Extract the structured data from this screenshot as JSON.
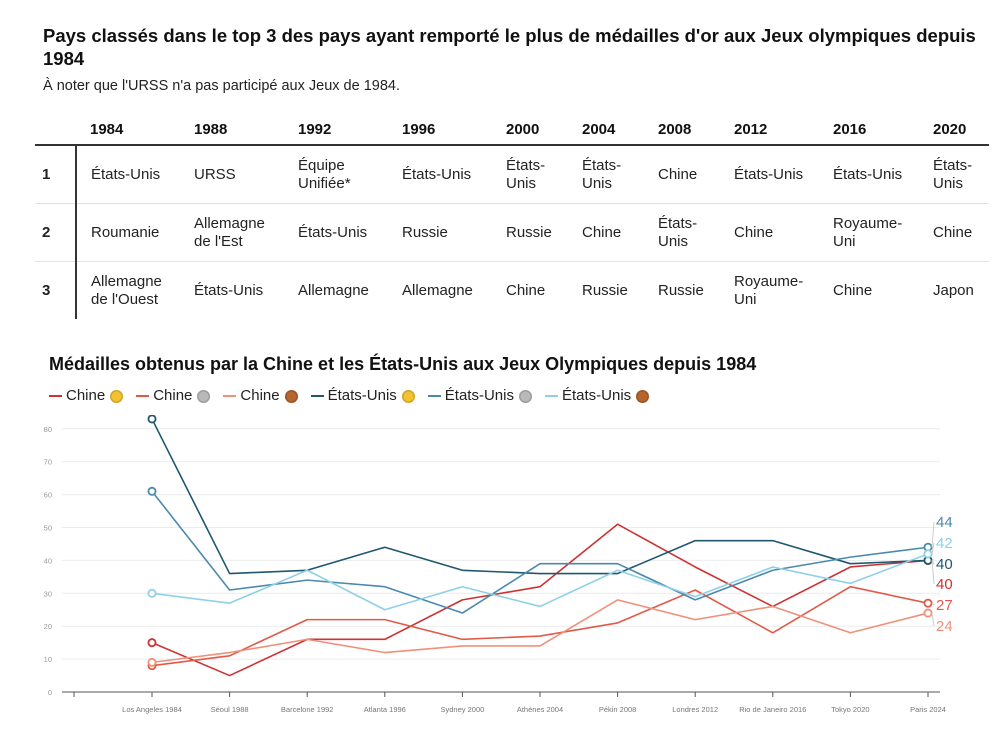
{
  "header": {
    "title": "Pays classés dans le top 3 des pays ayant remporté le plus de médailles d'or aux Jeux olympiques depuis 1984",
    "subtitle": "À noter que l'URSS n'a pas participé aux Jeux de 1984."
  },
  "ranking_table": {
    "columns": [
      "1984",
      "1988",
      "1992",
      "1996",
      "2000",
      "2004",
      "2008",
      "2012",
      "2016",
      "2020"
    ],
    "rows": [
      {
        "rank": "1",
        "cells": [
          "États-Unis",
          "URSS",
          "Équipe Unifiée*",
          "États-Unis",
          "États-Unis",
          "États-Unis",
          "Chine",
          "États-Unis",
          "États-Unis",
          "États-Unis"
        ]
      },
      {
        "rank": "2",
        "cells": [
          "Roumanie",
          "Allemagne de l'Est",
          "États-Unis",
          "Russie",
          "Russie",
          "Chine",
          "États-Unis",
          "Chine",
          "Royaume-Uni",
          "Chine"
        ]
      },
      {
        "rank": "3",
        "cells": [
          "Allemagne de l'Ouest",
          "États-Unis",
          "Allemagne",
          "Allemagne",
          "Chine",
          "Russie",
          "Russie",
          "Royaume-Uni",
          "Chine",
          "Japon"
        ]
      }
    ]
  },
  "colors": {
    "chine_or": "#cc3333",
    "chine_argent": "#e05a4a",
    "chine_bronze": "#f0907a",
    "usa_or": "#1f5670",
    "usa_argent": "#4a8aad",
    "usa_bronze": "#8fd0e8",
    "gold": "#f2c230",
    "silver": "#b9b9b9",
    "bronze": "#b5652d"
  },
  "chart_data": {
    "type": "line",
    "title": "Médailles obtenus par la Chine et les États-Unis aux Jeux Olympiques depuis 1984",
    "categories": [
      "Los Angeles 1984",
      "Séoul 1988",
      "Barcelone 1992",
      "Atlanta 1996",
      "Sydney 2000",
      "Athènes 2004",
      "Pékin 2008",
      "Londres 2012",
      "Rio de Janeiro 2016",
      "Tokyo 2020",
      "Paris 2024"
    ],
    "yticks": [
      0,
      10,
      20,
      30,
      40,
      50,
      60,
      70,
      80
    ],
    "ylim": [
      0,
      85
    ],
    "grid": true,
    "legend_position": "top-left",
    "series": [
      {
        "name": "Chine",
        "medal": "gold",
        "color": "#cc3333",
        "values": [
          15,
          5,
          16,
          16,
          28,
          32,
          51,
          38,
          26,
          38,
          40
        ],
        "end_label": "40"
      },
      {
        "name": "Chine",
        "medal": "silver",
        "color": "#e05a4a",
        "values": [
          8,
          11,
          22,
          22,
          16,
          17,
          21,
          31,
          18,
          32,
          27
        ],
        "end_label": "27"
      },
      {
        "name": "Chine",
        "medal": "bronze",
        "color": "#f0907a",
        "values": [
          9,
          12,
          16,
          12,
          14,
          14,
          28,
          22,
          26,
          18,
          24
        ],
        "end_label": "24"
      },
      {
        "name": "États-Unis",
        "medal": "gold",
        "color": "#1f5670",
        "values": [
          83,
          36,
          37,
          44,
          37,
          36,
          36,
          46,
          46,
          39,
          40
        ],
        "end_label": "40"
      },
      {
        "name": "États-Unis",
        "medal": "silver",
        "color": "#4a8aad",
        "values": [
          61,
          31,
          34,
          32,
          24,
          39,
          39,
          28,
          37,
          41,
          44
        ],
        "end_label": "44"
      },
      {
        "name": "États-Unis",
        "medal": "bronze",
        "color": "#8fd0e8",
        "values": [
          30,
          27,
          37,
          25,
          32,
          26,
          37,
          29,
          38,
          33,
          42
        ],
        "end_label": "42"
      }
    ]
  }
}
